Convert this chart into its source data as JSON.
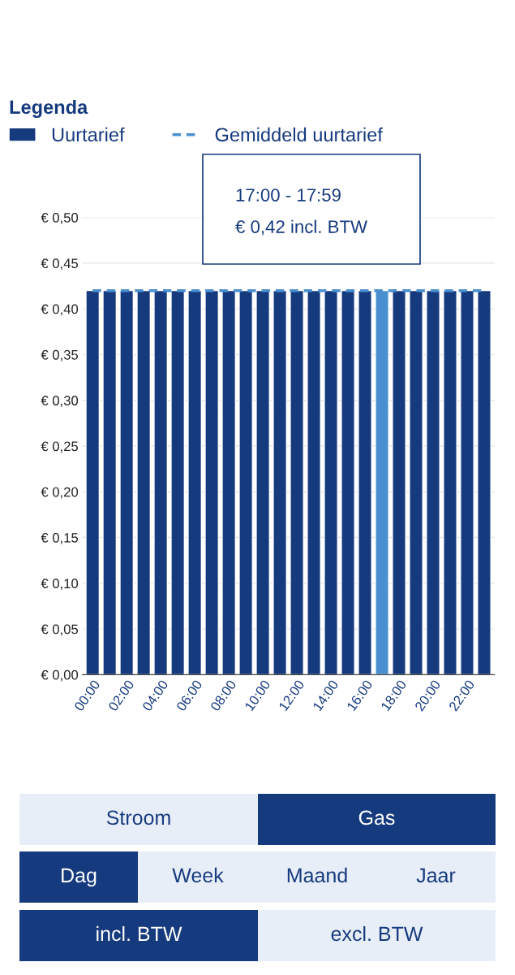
{
  "chart_data": {
    "type": "bar",
    "categories": [
      "00:00",
      null,
      "02:00",
      null,
      "04:00",
      null,
      "06:00",
      null,
      "08:00",
      null,
      "10:00",
      null,
      "12:00",
      null,
      "14:00",
      null,
      "16:00",
      null,
      "18:00",
      null,
      "20:00",
      null,
      "22:00",
      null
    ],
    "series": [
      {
        "name": "Uurtarief",
        "type": "bar",
        "color": "#163a7e",
        "colors": [
          "#163a7e",
          "#163a7e",
          "#163a7e",
          "#163a7e",
          "#163a7e",
          "#163a7e",
          "#163a7e",
          "#163a7e",
          "#163a7e",
          "#163a7e",
          "#163a7e",
          "#163a7e",
          "#163a7e",
          "#163a7e",
          "#163a7e",
          "#163a7e",
          "#163a7e",
          "#4a90d0",
          "#163a7e",
          "#163a7e",
          "#163a7e",
          "#163a7e",
          "#163a7e",
          "#163a7e"
        ],
        "values": [
          0.42,
          0.42,
          0.42,
          0.42,
          0.42,
          0.42,
          0.42,
          0.42,
          0.42,
          0.42,
          0.42,
          0.42,
          0.42,
          0.42,
          0.42,
          0.42,
          0.42,
          0.42,
          0.42,
          0.42,
          0.42,
          0.42,
          0.42,
          0.42
        ]
      },
      {
        "name": "Gemiddeld uurtarief",
        "type": "line",
        "color": "#4a90d0",
        "line_style": "dashed",
        "marker": "none",
        "values": [
          0.42,
          0.42,
          0.42,
          0.42,
          0.42,
          0.42,
          0.42,
          0.42,
          0.42,
          0.42,
          0.42,
          0.42,
          0.42,
          0.42,
          0.42,
          0.42,
          0.42,
          0.42,
          0.42,
          0.42,
          0.42,
          0.42,
          0.42,
          0.42
        ]
      }
    ],
    "legend_title": "Legenda",
    "legend": "top",
    "ylim": [
      0,
      0.5
    ],
    "yticks": [
      {
        "value": 0,
        "label": "€ 0,00"
      },
      {
        "value": 0.05,
        "label": "€ 0,05"
      },
      {
        "value": 0.1,
        "label": "€ 0,10"
      },
      {
        "value": 0.15,
        "label": "€ 0,15"
      },
      {
        "value": 0.2,
        "label": "€ 0,20"
      },
      {
        "value": 0.25,
        "label": "€ 0,25"
      },
      {
        "value": 0.3,
        "label": "€ 0,30"
      },
      {
        "value": 0.35,
        "label": "€ 0,35"
      },
      {
        "value": 0.4,
        "label": "€ 0,40"
      },
      {
        "value": 0.45,
        "label": "€ 0,45"
      },
      {
        "value": 0.5,
        "label": "€ 0,50"
      }
    ],
    "grid": "y",
    "annotations": [
      "17:00 - 17:59",
      "€ 0,42 incl. BTW",
      "Stroom",
      "Gas",
      "Dag",
      "Week",
      "Maand",
      "Jaar",
      "incl. BTW",
      "excl. BTW"
    ]
  }
}
